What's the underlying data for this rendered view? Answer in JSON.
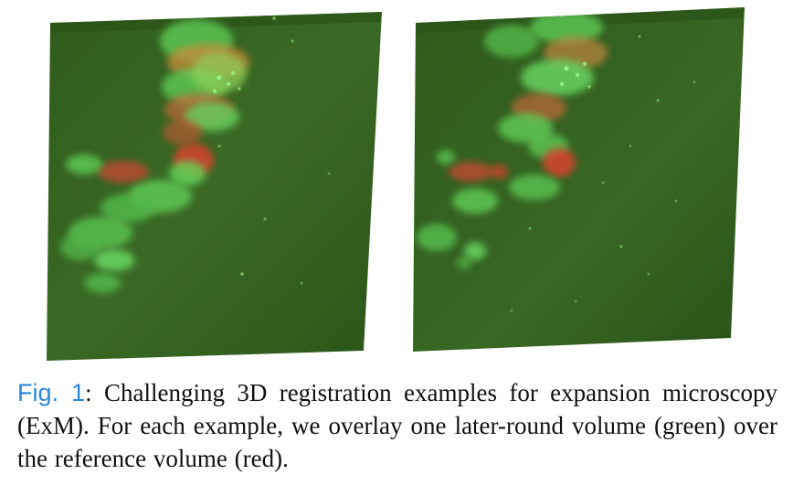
{
  "figure": {
    "panels": [
      "left-volume-render",
      "right-volume-render"
    ],
    "colors": {
      "volume_green": "#3b6a24",
      "volume_dark": "#2a4d16",
      "lateround_green": "#67e35f",
      "reference_red": "#d9432f",
      "link_blue": "#2a86d8"
    }
  },
  "caption": {
    "label": "Fig. 1",
    "text": ": Challenging 3D registration examples for expansion microscopy (ExM). For each example, we overlay one later-round volume (green) over the reference volume (red)."
  }
}
